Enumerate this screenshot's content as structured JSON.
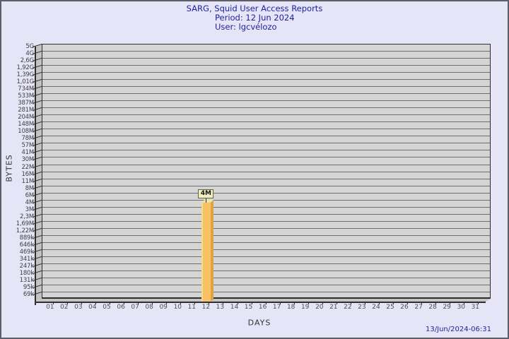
{
  "header": {
    "title": "SARG, Squid User Access Reports",
    "period": "Period: 12 Jun 2024",
    "user": "User: lgcvélozo"
  },
  "chart": {
    "y_axis_title": "BYTES",
    "x_axis_title": "DAYS",
    "y_ticks": [
      "5G",
      "4G",
      "2,6G",
      "1,92G",
      "1,39G",
      "1,01G",
      "734M",
      "533M",
      "387M",
      "281M",
      "204M",
      "148M",
      "108M",
      "78M",
      "57M",
      "41M",
      "30M",
      "22M",
      "16M",
      "11M",
      "8M",
      "6M",
      "4M",
      "3M",
      "2,3M",
      "1,69M",
      "1,22M",
      "889k",
      "646k",
      "469k",
      "341k",
      "247k",
      "180k",
      "131k",
      "95k",
      "69k"
    ],
    "x_ticks": [
      "01",
      "02",
      "03",
      "04",
      "05",
      "06",
      "07",
      "08",
      "09",
      "10",
      "11",
      "12",
      "13",
      "14",
      "15",
      "16",
      "17",
      "18",
      "19",
      "20",
      "21",
      "22",
      "23",
      "24",
      "25",
      "26",
      "27",
      "28",
      "29",
      "30",
      "31"
    ],
    "bar": {
      "day": "12",
      "label": "4M",
      "value_tick_index": 22
    }
  },
  "footer": {
    "timestamp": "13/Jun/2024-06:31"
  },
  "colors": {
    "background": "#e5e5f7",
    "frame_border": "#5d5d66",
    "title_text": "#2121a0",
    "plot_wall": "#d5d5d5",
    "plot_side": "#c3c3c3",
    "gridline": "#707070",
    "axis_line": "#2e2e2e",
    "bar_front": "#f8c262",
    "bar_highlight": "#fbd98f",
    "bar_side": "#dfa23e",
    "bar_top": "#f4e2a4",
    "value_label_bg": "#f0efc3"
  },
  "chart_data": {
    "type": "bar",
    "title": "SARG, Squid User Access Reports",
    "subtitle": "Period: 12 Jun 2024",
    "user": "lgcvélozo",
    "xlabel": "DAYS",
    "ylabel": "BYTES",
    "categories": [
      "01",
      "02",
      "03",
      "04",
      "05",
      "06",
      "07",
      "08",
      "09",
      "10",
      "11",
      "12",
      "13",
      "14",
      "15",
      "16",
      "17",
      "18",
      "19",
      "20",
      "21",
      "22",
      "23",
      "24",
      "25",
      "26",
      "27",
      "28",
      "29",
      "30",
      "31"
    ],
    "values": [
      null,
      null,
      null,
      null,
      null,
      null,
      null,
      null,
      null,
      null,
      null,
      4000000,
      null,
      null,
      null,
      null,
      null,
      null,
      null,
      null,
      null,
      null,
      null,
      null,
      null,
      null,
      null,
      null,
      null,
      null,
      null
    ],
    "bar_labels": [
      null,
      null,
      null,
      null,
      null,
      null,
      null,
      null,
      null,
      null,
      null,
      "4M",
      null,
      null,
      null,
      null,
      null,
      null,
      null,
      null,
      null,
      null,
      null,
      null,
      null,
      null,
      null,
      null,
      null,
      null,
      null
    ],
    "y_tick_labels": [
      "5G",
      "4G",
      "2,6G",
      "1,92G",
      "1,39G",
      "1,01G",
      "734M",
      "533M",
      "387M",
      "281M",
      "204M",
      "148M",
      "108M",
      "78M",
      "57M",
      "41M",
      "30M",
      "22M",
      "16M",
      "11M",
      "8M",
      "6M",
      "4M",
      "3M",
      "2,3M",
      "1,69M",
      "1,22M",
      "889k",
      "646k",
      "469k",
      "341k",
      "247k",
      "180k",
      "131k",
      "95k",
      "69k"
    ],
    "y_scale": "logarithmic",
    "grid": true,
    "legend": false,
    "style": "3d-bar",
    "bar_color": "#f8c262",
    "footer_timestamp": "13/Jun/2024-06:31"
  }
}
